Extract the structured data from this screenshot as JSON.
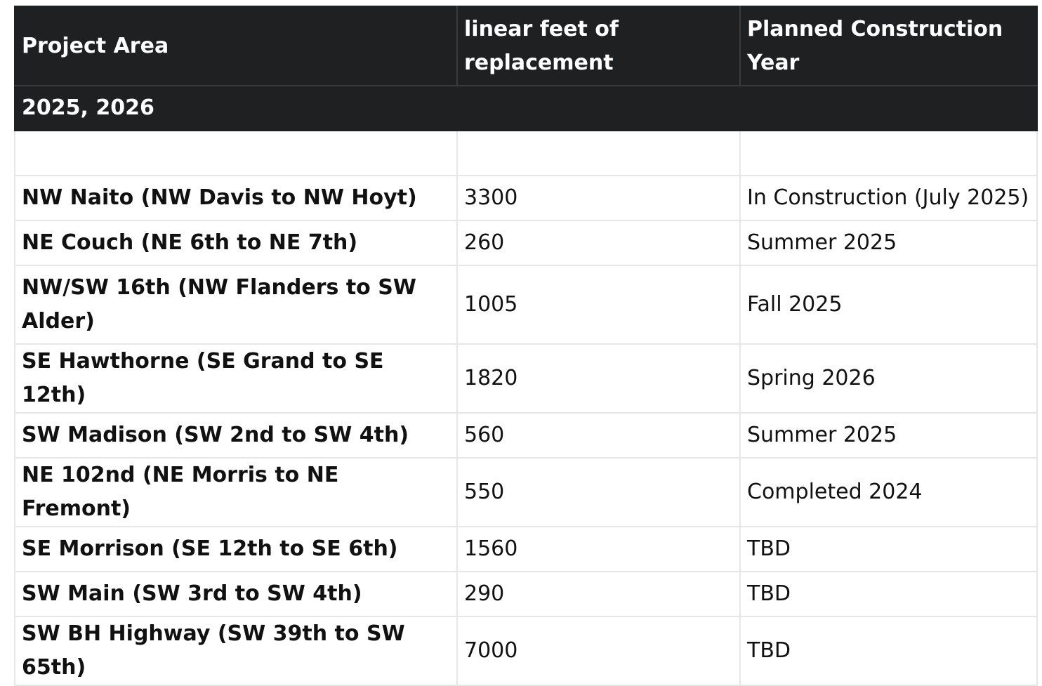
{
  "table": {
    "headers": [
      "Project Area",
      "linear feet of replacement",
      "Planned Construction Year"
    ],
    "group_label": "2025, 2026",
    "rows": [
      {
        "area": "NW Naito (NW Davis to NW Hoyt)",
        "feet": "3300",
        "year": "In Construction (July 2025)"
      },
      {
        "area": "NE Couch (NE 6th to NE 7th)",
        "feet": "260",
        "year": "Summer 2025"
      },
      {
        "area": "NW/SW 16th (NW Flanders to SW Alder)",
        "feet": "1005",
        "year": "Fall 2025"
      },
      {
        "area": "SE Hawthorne (SE Grand to SE 12th)",
        "feet": "1820",
        "year": "Spring 2026"
      },
      {
        "area": "SW Madison (SW 2nd to SW 4th)",
        "feet": "560",
        "year": "Summer 2025"
      },
      {
        "area": "NE 102nd (NE Morris to NE Fremont)",
        "feet": "550",
        "year": "Completed 2024"
      },
      {
        "area": "SE Morrison (SE 12th to SE 6th)",
        "feet": "1560",
        "year": "TBD"
      },
      {
        "area": "SW Main (SW 3rd to SW 4th)",
        "feet": "290",
        "year": "TBD"
      },
      {
        "area": "SW BH Highway (SW 39th to SW 65th)",
        "feet": "7000",
        "year": "TBD"
      }
    ]
  }
}
